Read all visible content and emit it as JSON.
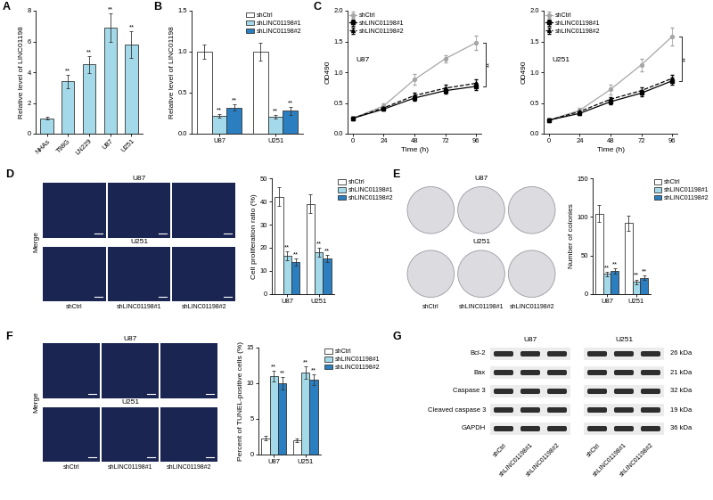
{
  "chart_data": [
    {
      "panel": "A",
      "type": "bar",
      "categories": [
        "NHAs",
        "T98G",
        "LN229",
        "U87",
        "U251"
      ],
      "values": [
        1.0,
        3.4,
        4.5,
        6.9,
        5.8
      ],
      "errors": [
        0.08,
        0.45,
        0.55,
        0.9,
        0.85
      ],
      "significance": [
        null,
        "**",
        "**",
        "**",
        "**"
      ],
      "color": "#a3d9e8",
      "y_label": "Relative level of LINC01198",
      "ylim": [
        0,
        8
      ],
      "yticks": [
        0,
        2,
        4,
        6,
        8
      ]
    },
    {
      "panel": "B",
      "type": "bar",
      "categories": [
        "U87",
        "U251"
      ],
      "series": [
        {
          "name": "shCtrl",
          "color": "#ffffff",
          "values": [
            1.0,
            1.0
          ],
          "errors": [
            0.09,
            0.11
          ]
        },
        {
          "name": "shLINC01198#1",
          "color": "#a3d9e8",
          "values": [
            0.22,
            0.21
          ],
          "errors": [
            0.02,
            0.02
          ],
          "significance": [
            "**",
            "**"
          ]
        },
        {
          "name": "shLINC01198#2",
          "color": "#2b7fc0",
          "values": [
            0.32,
            0.28
          ],
          "errors": [
            0.04,
            0.05
          ],
          "significance": [
            "**",
            "**"
          ]
        }
      ],
      "y_label": "Relative level of LINC01198",
      "ylim": [
        0,
        1.5
      ],
      "yticks": [
        {
          "value": 0,
          "label": "0.0"
        },
        {
          "value": 0.5,
          "label": "0.5"
        },
        {
          "value": 1.0,
          "label": "1.0"
        },
        {
          "value": 1.5,
          "label": "1.5"
        }
      ],
      "legend": "upper right"
    },
    {
      "panel": "C",
      "type": "line",
      "annotation": "U87",
      "significance": "**",
      "x": [
        0,
        24,
        48,
        72,
        96
      ],
      "series": [
        {
          "name": "shCtrl",
          "color": "#a6a6a6",
          "marker": "circle",
          "line_style": "solid",
          "values": [
            0.25,
            0.45,
            0.88,
            1.22,
            1.48
          ],
          "errors": [
            0.02,
            0.04,
            0.09,
            0.06,
            0.12
          ]
        },
        {
          "name": "shLINC01198#1",
          "color": "#000000",
          "marker": "square",
          "line_style": "solid",
          "values": [
            0.25,
            0.4,
            0.58,
            0.7,
            0.77
          ],
          "errors": [
            0.02,
            0.03,
            0.04,
            0.05,
            0.06
          ]
        },
        {
          "name": "shLINC01198#2",
          "color": "#000000",
          "marker": "triangle",
          "line_style": "dashed",
          "values": [
            0.25,
            0.42,
            0.62,
            0.74,
            0.82
          ],
          "errors": [
            0.02,
            0.03,
            0.04,
            0.05,
            0.06
          ]
        }
      ],
      "x_label": "Time (h)",
      "y_label": "OD490",
      "xlim": [
        -4,
        100
      ],
      "xticks": [
        0,
        24,
        48,
        72,
        96
      ],
      "ylim": [
        0,
        2.0
      ],
      "yticks": [
        {
          "value": 0,
          "label": "0.0"
        },
        {
          "value": 0.5,
          "label": "0.5"
        },
        {
          "value": 1.0,
          "label": "1.0"
        },
        {
          "value": 1.5,
          "label": "1.5"
        },
        {
          "value": 2.0,
          "label": "2.0"
        }
      ],
      "legend": "upper left"
    },
    {
      "type": "line",
      "annotation": "U251",
      "significance": "**",
      "x": [
        0,
        24,
        48,
        72,
        96
      ],
      "series": [
        {
          "name": "shCtrl",
          "color": "#a6a6a6",
          "marker": "circle",
          "line_style": "solid",
          "values": [
            0.22,
            0.38,
            0.72,
            1.12,
            1.58
          ],
          "errors": [
            0.02,
            0.04,
            0.08,
            0.1,
            0.15
          ]
        },
        {
          "name": "shLINC01198#1",
          "color": "#000000",
          "marker": "square",
          "line_style": "solid",
          "values": [
            0.22,
            0.33,
            0.52,
            0.66,
            0.86
          ],
          "errors": [
            0.02,
            0.03,
            0.04,
            0.05,
            0.06
          ]
        },
        {
          "name": "shLINC01198#2",
          "color": "#000000",
          "marker": "triangle",
          "line_style": "dashed",
          "values": [
            0.22,
            0.36,
            0.56,
            0.7,
            0.9
          ],
          "errors": [
            0.02,
            0.03,
            0.04,
            0.05,
            0.06
          ]
        }
      ],
      "x_label": "Time (h)",
      "y_label": "OD490",
      "xlim": [
        -4,
        100
      ],
      "xticks": [
        0,
        24,
        48,
        72,
        96
      ],
      "ylim": [
        0,
        2.0
      ],
      "yticks": [
        {
          "value": 0,
          "label": "0.0"
        },
        {
          "value": 0.5,
          "label": "0.5"
        },
        {
          "value": 1.0,
          "label": "1.0"
        },
        {
          "value": 1.5,
          "label": "1.5"
        },
        {
          "value": 2.0,
          "label": "2.0"
        }
      ],
      "legend": "upper left"
    },
    {
      "panel": "D",
      "type": "bar",
      "categories": [
        "U87",
        "U251"
      ],
      "series": [
        {
          "name": "shCtrl",
          "color": "#ffffff",
          "values": [
            42,
            39
          ],
          "errors": [
            4,
            4
          ]
        },
        {
          "name": "shLINC01198#1",
          "color": "#a3d9e8",
          "values": [
            16.5,
            18
          ],
          "errors": [
            2,
            2
          ],
          "significance": [
            "**",
            "**"
          ]
        },
        {
          "name": "shLINC01198#2",
          "color": "#2b7fc0",
          "values": [
            14,
            15.5
          ],
          "errors": [
            1.5,
            1.5
          ],
          "significance": [
            "**",
            "**"
          ]
        }
      ],
      "y_label": "Cell proliferation ratio (%)",
      "ylim": [
        0,
        50
      ],
      "yticks": [
        0,
        10,
        20,
        30,
        40,
        50
      ],
      "legend": "right"
    },
    {
      "panel": "E",
      "type": "bar",
      "categories": [
        "U87",
        "U251"
      ],
      "series": [
        {
          "name": "shCtrl",
          "color": "#ffffff",
          "values": [
            104,
            92
          ],
          "errors": [
            11,
            10
          ]
        },
        {
          "name": "shLINC01198#1",
          "color": "#a3d9e8",
          "values": [
            26,
            16
          ],
          "errors": [
            3,
            3
          ],
          "significance": [
            "**",
            "**"
          ]
        },
        {
          "name": "shLINC01198#2",
          "color": "#2b7fc0",
          "values": [
            30,
            21
          ],
          "errors": [
            3,
            3
          ],
          "significance": [
            "**",
            "**"
          ]
        }
      ],
      "y_label": "Number of colonies",
      "ylim": [
        0,
        150
      ],
      "yticks": [
        0,
        50,
        100,
        150
      ],
      "legend": "right"
    },
    {
      "panel": "F",
      "type": "bar",
      "categories": [
        "U87",
        "U251"
      ],
      "series": [
        {
          "name": "shCtrl",
          "color": "#ffffff",
          "values": [
            2.3,
            2.0
          ],
          "errors": [
            0.3,
            0.3
          ]
        },
        {
          "name": "shLINC01198#1",
          "color": "#a3d9e8",
          "values": [
            11,
            11.5
          ],
          "errors": [
            0.8,
            0.9
          ],
          "significance": [
            "**",
            "**"
          ]
        },
        {
          "name": "shLINC01198#2",
          "color": "#2b7fc0",
          "values": [
            10,
            10.5
          ],
          "errors": [
            0.9,
            0.8
          ],
          "significance": [
            "**",
            "**"
          ]
        }
      ],
      "y_label": "Percent of TUNEL-positive cells (%)",
      "ylim": [
        0,
        15
      ],
      "yticks": [
        0,
        5,
        10,
        15
      ],
      "legend": "right"
    }
  ],
  "images": {
    "D": {
      "side_label": "Merge",
      "rows": [
        "U87",
        "U251"
      ],
      "columns": [
        "shCtrl",
        "shLINC01198#1",
        "shLINC01198#2"
      ]
    },
    "E": {
      "rows": [
        "U87",
        "U251"
      ],
      "columns": [
        "shCtrl",
        "shLINC01198#1",
        "shLINC01198#2"
      ]
    },
    "F": {
      "side_label": "Merge",
      "rows": [
        "U87",
        "U251"
      ],
      "columns": [
        "shCtrl",
        "shLINC01198#1",
        "shLINC01198#2"
      ]
    }
  },
  "blot": {
    "panel": "G",
    "groups": [
      "U87",
      "U251"
    ],
    "lanes": [
      "shCtrl",
      "shLINC01198#1",
      "shLINC01198#2"
    ],
    "rows": [
      {
        "name": "Bcl-2",
        "size": "26 kDa"
      },
      {
        "name": "Bax",
        "size": "21 kDa"
      },
      {
        "name": "Caspase 3",
        "size": "32 kDa"
      },
      {
        "name": "Cleaved caspase 3",
        "size": "19 kDa"
      },
      {
        "name": "GAPDH",
        "size": "36 kDa"
      }
    ]
  }
}
